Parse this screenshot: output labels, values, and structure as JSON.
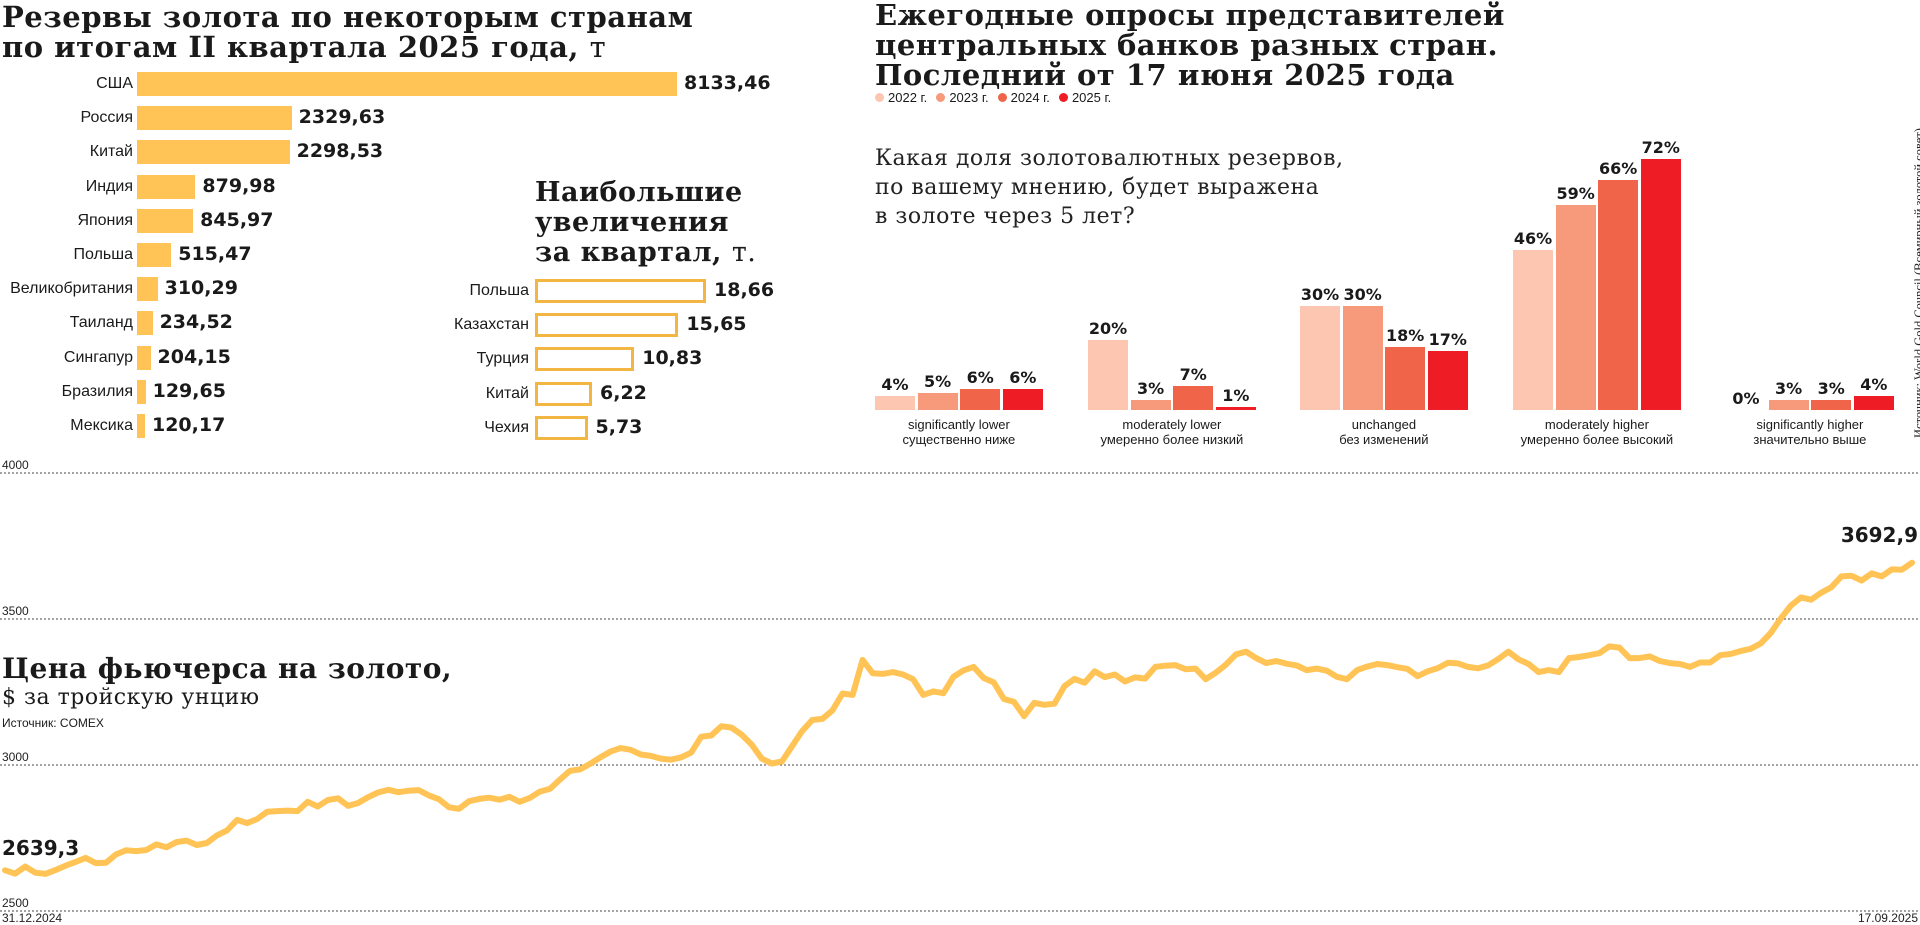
{
  "reserves": {
    "title_line1": "Резервы золота по некоторым странам",
    "title_line2": "по итогам II квартала 2025 года,",
    "title_unit": "т",
    "color": "#ffc455"
  },
  "increases": {
    "title_line1": "Наибольшие",
    "title_line2": "увеличения",
    "title_line3": "за квартал,",
    "title_unit": "т.",
    "border_color": "#f4b642"
  },
  "survey": {
    "title_line1": "Ежегодные опросы представителей",
    "title_line2": "центральных банков разных стран.",
    "title_line3": "Последний от 17 июня 2025 года",
    "question_line1": "Какая доля золотовалютных резервов,",
    "question_line2": "по вашему мнению, будет выражена",
    "question_line3": "в золоте через 5 лет?",
    "source": "Источник: World Gold Council (Всемирный золотой совет)"
  },
  "futures": {
    "title": "Цена фьючерса на золото,",
    "subtitle": "$ за тройскую унцию",
    "source": "Источник: COMEX",
    "color": "#ffc455"
  },
  "chart_data": [
    {
      "type": "bar",
      "orientation": "horizontal",
      "title": "Резервы золота по некоторым странам по итогам II квартала 2025 года, т",
      "categories": [
        "США",
        "Россия",
        "Китай",
        "Индия",
        "Япония",
        "Польша",
        "Великобритания",
        "Таиланд",
        "Сингапур",
        "Бразилия",
        "Мексика"
      ],
      "values": [
        8133.46,
        2329.63,
        2298.53,
        879.98,
        845.97,
        515.47,
        310.29,
        234.52,
        204.15,
        129.65,
        120.17
      ],
      "value_labels": [
        "8133,46",
        "2329,63",
        "2298,53",
        "879,98",
        "845,97",
        "515,47",
        "310,29",
        "234,52",
        "204,15",
        "129,65",
        "120,17"
      ]
    },
    {
      "type": "bar",
      "orientation": "horizontal",
      "title": "Наибольшие увеличения за квартал, т.",
      "categories": [
        "Польша",
        "Казахстан",
        "Турция",
        "Китай",
        "Чехия"
      ],
      "values": [
        18.66,
        15.65,
        10.83,
        6.22,
        5.73
      ],
      "value_labels": [
        "18,66",
        "15,65",
        "10,83",
        "6,22",
        "5,73"
      ]
    },
    {
      "type": "bar",
      "title": "Ежегодные опросы представителей центральных банков разных стран. Последний от 17 июня 2025 года",
      "categories": [
        [
          "significantly lower",
          "существенно ниже"
        ],
        [
          "moderately lower",
          "умеренно более низкий"
        ],
        [
          "unchanged",
          "без изменений"
        ],
        [
          "moderately higher",
          "умеренно более высокий"
        ],
        [
          "significantly higher",
          "значительно выше"
        ]
      ],
      "series": [
        {
          "name": "2022 г.",
          "color": "#fcc6b1",
          "values": [
            4,
            20,
            30,
            46,
            0
          ]
        },
        {
          "name": "2023 г.",
          "color": "#f79a7c",
          "values": [
            5,
            3,
            30,
            59,
            3
          ]
        },
        {
          "name": "2024 г.",
          "color": "#f06549",
          "values": [
            6,
            7,
            18,
            66,
            3
          ]
        },
        {
          "name": "2025 г.",
          "color": "#ee1c24",
          "values": [
            6,
            1,
            17,
            72,
            4
          ]
        }
      ],
      "unit": "%",
      "legend": "top-left"
    },
    {
      "type": "line",
      "title": "Цена фьючерса на золото, $ за тройскую унцию",
      "x_start": "31.12.2024",
      "x_end": "17.09.2025",
      "ylim": [
        2500,
        4000
      ],
      "yticks": [
        "2500",
        "3000",
        "3500",
        "4000"
      ],
      "grid": true,
      "start_label": "2639,3",
      "end_label": "3692,9",
      "values": [
        2639.3,
        2628,
        2652,
        2631,
        2627,
        2640,
        2655,
        2668,
        2682,
        2664,
        2665,
        2694,
        2708,
        2705,
        2709,
        2728,
        2718,
        2736,
        2741,
        2726,
        2733,
        2759,
        2776,
        2812,
        2801,
        2815,
        2840,
        2842,
        2844,
        2842,
        2874,
        2858,
        2880,
        2886,
        2860,
        2870,
        2890,
        2906,
        2915,
        2907,
        2912,
        2914,
        2896,
        2883,
        2855,
        2850,
        2876,
        2884,
        2888,
        2881,
        2891,
        2874,
        2887,
        2909,
        2918,
        2950,
        2980,
        2985,
        3004,
        3026,
        3046,
        3058,
        3052,
        3036,
        3031,
        3022,
        3018,
        3026,
        3042,
        3097,
        3101,
        3133,
        3128,
        3104,
        3070,
        3022,
        3005,
        3012,
        3064,
        3116,
        3154,
        3158,
        3187,
        3245,
        3240,
        3360,
        3314,
        3312,
        3318,
        3310,
        3294,
        3240,
        3252,
        3246,
        3302,
        3324,
        3336,
        3298,
        3283,
        3226,
        3216,
        3167,
        3213,
        3206,
        3210,
        3270,
        3295,
        3282,
        3321,
        3301,
        3310,
        3286,
        3300,
        3296,
        3336,
        3340,
        3342,
        3328,
        3330,
        3294,
        3316,
        3344,
        3379,
        3388,
        3366,
        3349,
        3356,
        3347,
        3341,
        3325,
        3330,
        3323,
        3302,
        3294,
        3325,
        3337,
        3346,
        3342,
        3335,
        3329,
        3304,
        3321,
        3332,
        3350,
        3348,
        3336,
        3331,
        3341,
        3363,
        3388,
        3362,
        3346,
        3318,
        3325,
        3318,
        3366,
        3370,
        3376,
        3383,
        3406,
        3402,
        3366,
        3366,
        3372,
        3356,
        3349,
        3346,
        3336,
        3351,
        3351,
        3376,
        3380,
        3390,
        3398,
        3416,
        3452,
        3502,
        3546,
        3574,
        3566,
        3590,
        3609,
        3646,
        3648,
        3632,
        3656,
        3646,
        3670,
        3669,
        3692.9
      ]
    }
  ]
}
